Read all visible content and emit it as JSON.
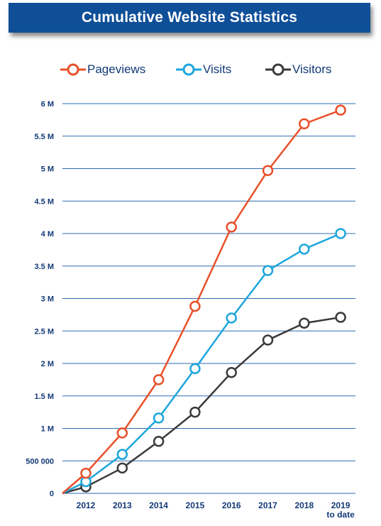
{
  "title": "Cumulative Website Statistics",
  "chart_data": {
    "type": "line",
    "title": "Cumulative Website Statistics",
    "xlabel": "",
    "ylabel": "",
    "categories": [
      "2012",
      "2013",
      "2014",
      "2015",
      "2016",
      "2017",
      "2018",
      "2019\nto date"
    ],
    "origin_value": 0,
    "ylim": [
      0,
      6000000
    ],
    "yticks": [
      0,
      500000,
      1000000,
      1500000,
      2000000,
      2500000,
      3000000,
      3500000,
      4000000,
      4500000,
      5000000,
      5500000,
      6000000
    ],
    "ytick_labels": [
      "0",
      "500 000",
      "1 M",
      "1.5 M",
      "2 M",
      "2.5 M",
      "3 M",
      "3.5 M",
      "4 M",
      "4.5 M",
      "5 M",
      "5.5 M",
      "6 M"
    ],
    "grid": true,
    "legend_position": "top",
    "series": [
      {
        "name": "Pageviews",
        "color": "#e8502a",
        "values": [
          310000,
          930000,
          1750000,
          2880000,
          4100000,
          4970000,
          5690000,
          5900000
        ]
      },
      {
        "name": "Visits",
        "color": "#1ca6dc",
        "values": [
          180000,
          600000,
          1160000,
          1920000,
          2700000,
          3430000,
          3760000,
          4000000
        ]
      },
      {
        "name": "Visitors",
        "color": "#3a3a3a",
        "values": [
          100000,
          390000,
          800000,
          1250000,
          1860000,
          2360000,
          2620000,
          2710000
        ]
      }
    ]
  }
}
